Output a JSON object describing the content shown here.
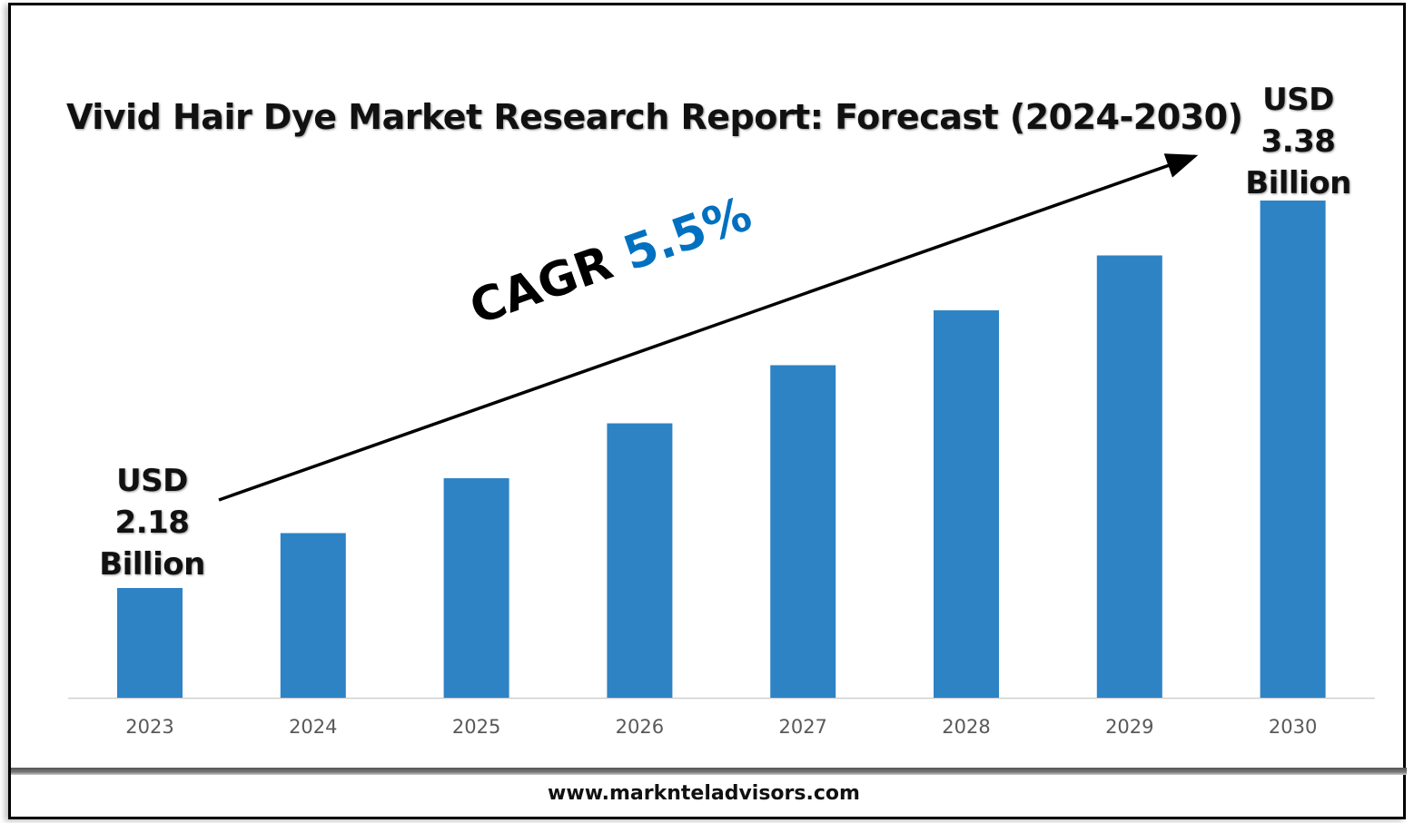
{
  "chart_data": {
    "type": "bar",
    "title": "Vivid Hair Dye Market Research Report: Forecast (2024-2030)",
    "categories": [
      "2023",
      "2024",
      "2025",
      "2026",
      "2027",
      "2028",
      "2029",
      "2030"
    ],
    "values": [
      2.18,
      2.35,
      2.52,
      2.69,
      2.87,
      3.04,
      3.21,
      3.38
    ],
    "unit": "USD Billion",
    "xlabel": "",
    "ylabel": "",
    "grid": false,
    "bar_color": "#2e83c5",
    "annotations": {
      "start": {
        "line1": "USD",
        "line2": "2.18",
        "line3": "Billion"
      },
      "end": {
        "line1": "USD",
        "line2": "3.38",
        "line3": "Billion"
      },
      "cagr_label": "CAGR",
      "cagr_value": "5.5%",
      "cagr_color": "#0070c0"
    }
  },
  "footer": {
    "website": "www.marknteladvisors.com"
  }
}
